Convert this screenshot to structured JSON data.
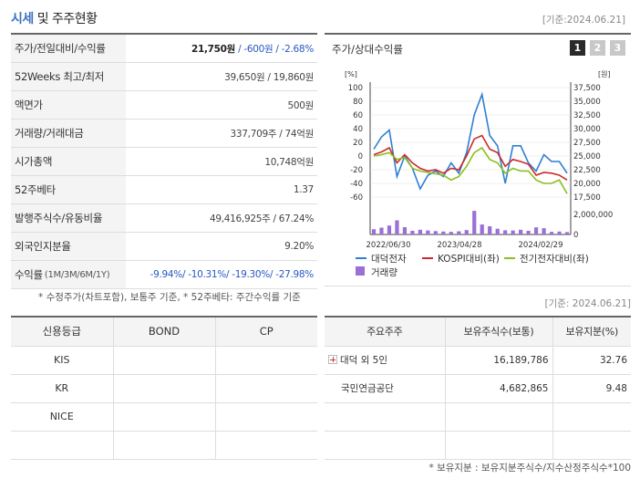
{
  "header": {
    "title_accent": "시세",
    "title_rest": " 및 주주현황",
    "date": "[기준:2024.06.21]"
  },
  "price_table": {
    "rows": [
      {
        "label": "주가/전일대비/수익률",
        "v1": "21,750원",
        "v2": " / -600원 / -2.68%"
      },
      {
        "label": "52Weeks 최고/최저",
        "value": "39,650원 / 19,860원"
      },
      {
        "label": "액면가",
        "value": "500원"
      },
      {
        "label": "거래량/거래대금",
        "value": "337,709주 / 74억원"
      },
      {
        "label": "시가총액",
        "value": "10,748억원"
      },
      {
        "label": "52주베타",
        "value": "1.37"
      },
      {
        "label": "발행주식수/유동비율",
        "value": "49,416,925주 / 67.24%"
      },
      {
        "label": "외국인지분율",
        "value": "9.20%"
      },
      {
        "label": "수익률",
        "label_sub": "(1M/3M/6M/1Y)",
        "value": "-9.94%/ -10.31%/ -19.30%/ -27.98%"
      }
    ],
    "note": "* 수정주가(차트포함), 보통주 기준, * 52주베타: 주간수익률 기준"
  },
  "chart": {
    "title": "주가/상대수익률",
    "tabs": [
      "1",
      "2",
      "3"
    ],
    "active_tab": "1",
    "colors": {
      "stock": "#2f7fd1",
      "kospi": "#cc2a2a",
      "sector": "#8cbf1f",
      "volume": "#9b6fd6",
      "grid": "#e0e0e0",
      "axis": "#444"
    }
  },
  "chart_data": {
    "type": "line",
    "left_unit": "[%]",
    "right_unit": "[원]",
    "left_ticks": [
      "100",
      "80",
      "60",
      "40",
      "20",
      "0",
      "-20",
      "-40",
      "-60"
    ],
    "right_ticks": [
      "37,500",
      "35,000",
      "32,500",
      "30,000",
      "27,500",
      "25,000",
      "22,500",
      "20,000",
      "17,500"
    ],
    "ylim": [
      -60,
      100
    ],
    "volume_ticks": [
      "2,000,000",
      "0"
    ],
    "volume_max": 2000000,
    "x_labels": [
      "2022/06/30",
      "2023/04/28",
      "2024/02/29"
    ],
    "legend": [
      "대덕전자",
      "KOSPI대비(좌)",
      "전기전자대비(좌)",
      "거래량"
    ],
    "series": [
      {
        "name": "대덕전자",
        "values": [
          10,
          28,
          38,
          -30,
          0,
          -18,
          -48,
          -28,
          -22,
          -30,
          -10,
          -25,
          5,
          60,
          90,
          30,
          15,
          -40,
          15,
          15,
          -10,
          -22,
          2,
          -8,
          -8,
          -25
        ]
      },
      {
        "name": "KOSPI대비(좌)",
        "values": [
          2,
          6,
          12,
          -10,
          2,
          -10,
          -18,
          -22,
          -20,
          -25,
          -18,
          -20,
          0,
          25,
          30,
          10,
          5,
          -15,
          -5,
          -8,
          -12,
          -28,
          -24,
          -25,
          -28,
          -35
        ]
      },
      {
        "name": "전기전자대비(좌)",
        "values": [
          0,
          2,
          5,
          -5,
          -2,
          -18,
          -22,
          -24,
          -26,
          -28,
          -35,
          -30,
          -15,
          5,
          12,
          -5,
          -10,
          -25,
          -18,
          -22,
          -22,
          -35,
          -40,
          -40,
          -35,
          -55
        ]
      }
    ],
    "volume": [
      500000,
      650000,
      850000,
      1350000,
      700000,
      350000,
      450000,
      380000,
      320000,
      280000,
      250000,
      300000,
      420000,
      2250000,
      950000,
      780000,
      550000,
      400000,
      380000,
      450000,
      350000,
      680000,
      600000,
      250000,
      280000,
      230000
    ]
  },
  "credit_table": {
    "headers": [
      "신용등급",
      "BOND",
      "CP"
    ],
    "rows": [
      "KIS",
      "KR",
      "NICE",
      ""
    ]
  },
  "holder_table": {
    "date": "[기준: 2024.06.21]",
    "headers": [
      "주요주주",
      "보유주식수(보통)",
      "보유지분(%)"
    ],
    "rows": [
      {
        "name": "대덕 외 5인",
        "shares": "16,189,786",
        "pct": "32.76",
        "expandable": true
      },
      {
        "name": "국민연금공단",
        "shares": "4,682,865",
        "pct": "9.48",
        "expandable": false
      },
      {
        "name": "",
        "shares": "",
        "pct": "",
        "expandable": false
      },
      {
        "name": "",
        "shares": "",
        "pct": "",
        "expandable": false
      }
    ],
    "note": "* 보유지분 : 보유지분주식수/지수산정주식수*100"
  }
}
